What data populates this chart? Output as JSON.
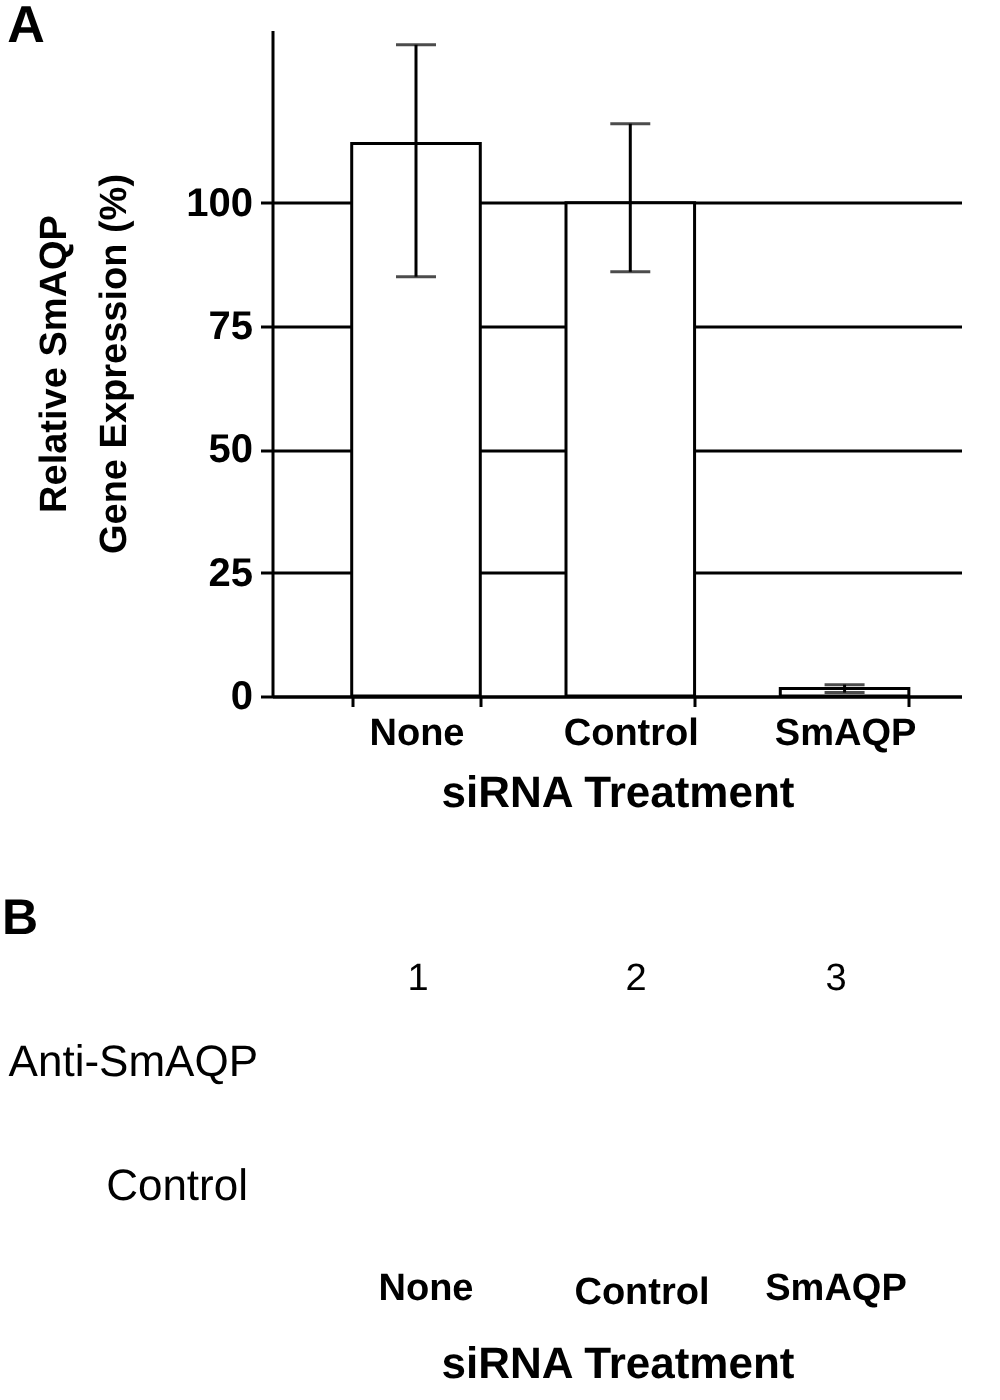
{
  "chart_data": [
    {
      "type": "bar",
      "title": "A",
      "ylabel": "Relative SmAQP\nGene Expression (%)",
      "xlabel": "siRNA Treatment",
      "categories": [
        "None",
        "Control",
        "SmAQP"
      ],
      "values": [
        112,
        100,
        1.5
      ],
      "errors": [
        [
          85,
          132
        ],
        [
          86,
          116
        ],
        0.8
      ],
      "color": "#ffffff",
      "ylim": [
        0,
        135
      ],
      "yticks": [
        0,
        25,
        50,
        75,
        100
      ],
      "grid": "y"
    },
    {
      "type": "other",
      "title": "B",
      "annotations": [
        "1",
        "2",
        "3",
        "Anti-SmAQP",
        "Control",
        "None",
        "Control",
        "SmAQP",
        "siRNA Treatment"
      ]
    }
  ]
}
